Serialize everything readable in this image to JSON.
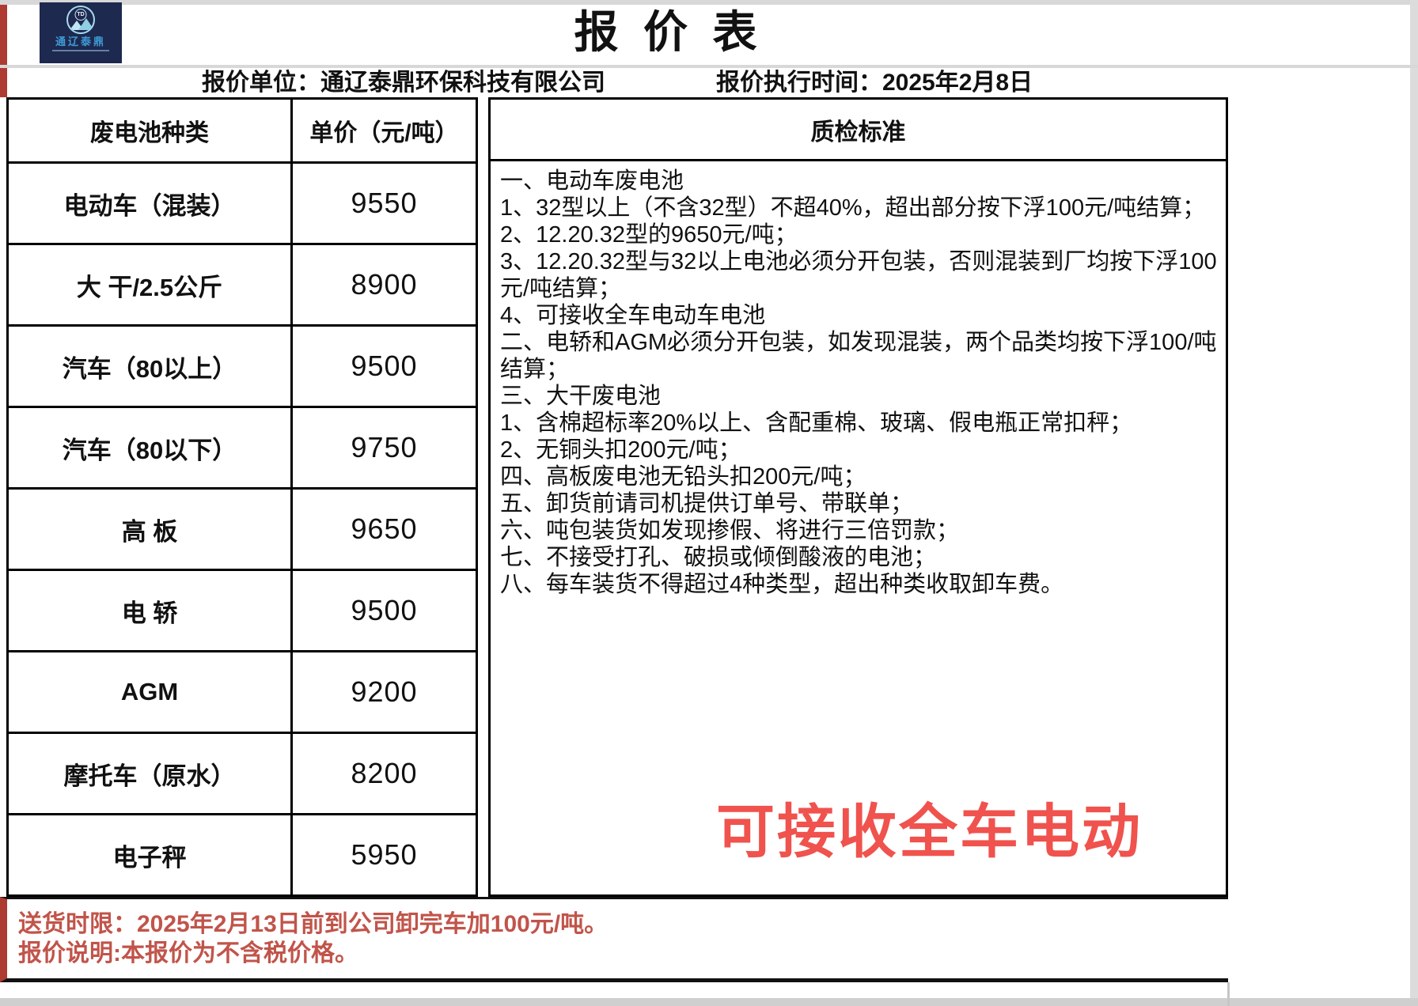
{
  "header": {
    "title": "报 价 表",
    "company_line": "报价单位：通辽泰鼎环保科技有限公司",
    "time_line": "报价执行时间：2025年2月8日"
  },
  "logo": {
    "monogram": "TD",
    "name": "通辽泰鼎"
  },
  "price_table": {
    "headers": {
      "type": "废电池种类",
      "price": "单价（元/吨）"
    },
    "rows": [
      {
        "type": "电动车（混装）",
        "price": "9550"
      },
      {
        "type": "大 干/2.5公斤",
        "price": "8900"
      },
      {
        "type": "汽车（80以上）",
        "price": "9500"
      },
      {
        "type": "汽车（80以下）",
        "price": "9750"
      },
      {
        "type": "高 板",
        "price": "9650"
      },
      {
        "type": "电 轿",
        "price": "9500"
      },
      {
        "type": "AGM",
        "price": "9200"
      },
      {
        "type": "摩托车（原水）",
        "price": "8200"
      },
      {
        "type": "电子秤",
        "price": "5950"
      }
    ]
  },
  "standards": {
    "header": "质检标准",
    "lines": [
      "一、电动车废电池",
      "1、32型以上（不含32型）不超40%，超出部分按下浮100元/吨结算；",
      "2、12.20.32型的9650元/吨；",
      "3、12.20.32型与32以上电池必须分开包装，否则混装到厂均按下浮100元/吨结算；",
      "4、可接收全车电动车电池",
      "二、电轿和AGM必须分开包装，如发现混装，两个品类均按下浮100/吨结算；",
      "三、大干废电池",
      "1、含棉超标率20%以上、含配重棉、玻璃、假电瓶正常扣秤；",
      "2、无铜头扣200元/吨；",
      "四、高板废电池无铅头扣200元/吨；",
      "五、卸货前请司机提供订单号、带联单；",
      "六、吨包装货如发现掺假、将进行三倍罚款；",
      "七、不接受打孔、破损或倾倒酸液的电池；",
      "八、每车装货不得超过4种类型，超出种类收取卸车费。"
    ],
    "highlight": "可接收全车电动"
  },
  "footer": {
    "delivery_note": "送货时限：2025年2月13日前到公司卸完车加100元/吨。",
    "tax_note": "报价说明:本报价为不含税价格。"
  },
  "colors": {
    "highlight_red": "#f0524d",
    "note_red": "#c1544a",
    "accent_strip_red": "#ae3b32",
    "logo_navy": "#1e2950",
    "border_black": "#000000",
    "divider_gray": "#d8d8d8"
  }
}
